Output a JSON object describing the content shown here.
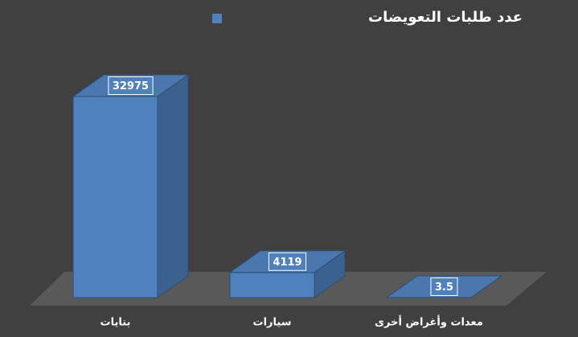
{
  "chart_data": {
    "type": "bar3d",
    "categories": [
      "بنايات",
      "سيارات",
      "معدات وأغراض أخرى"
    ],
    "series": [
      {
        "name": "عدد طلبات التعويضات",
        "color": "#4f81bd",
        "values": [
          32975,
          4119,
          3.5
        ]
      }
    ],
    "legend": "top",
    "data_labels": true
  }
}
